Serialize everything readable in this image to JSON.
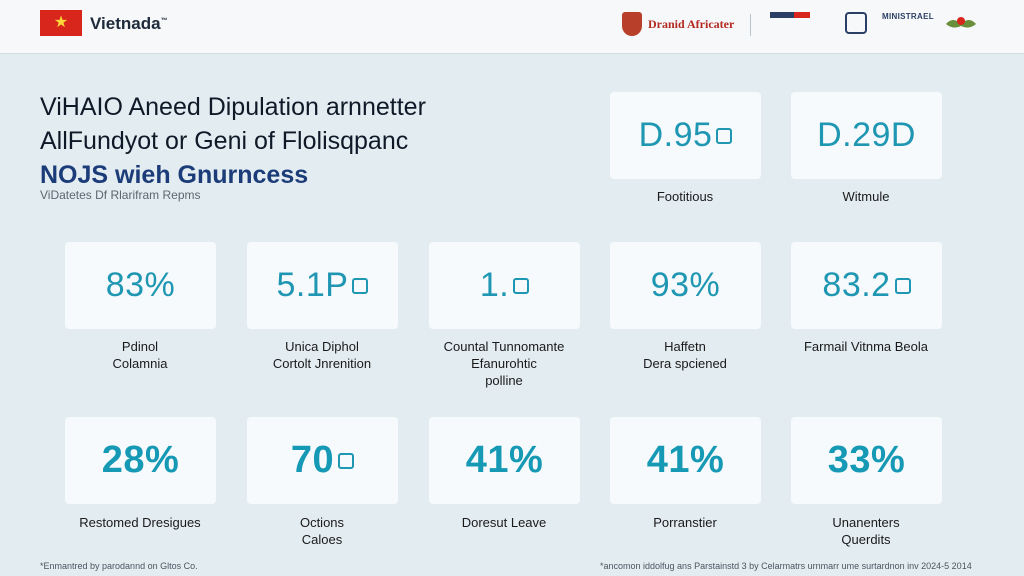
{
  "header": {
    "brand": "Vietnada",
    "brand_mark": "™",
    "partners": [
      "Dranid Africater",
      "MINISTRAEL"
    ]
  },
  "hero": {
    "title_line1": "ViHAIO Aneed Dipulation arnnetter",
    "title_line2": "AllFundyot or Geni of Flolisqpanc",
    "title_line3": "NOJS wieh Gnurncess",
    "subtitle": "ViDatetes Df Rlarifram Repms"
  },
  "top_stats": [
    {
      "value": "D.95",
      "caption": "Footitious"
    },
    {
      "value": "D.29D",
      "caption": "Witmule"
    }
  ],
  "mid_stats": [
    {
      "value": "83%",
      "caption": "Pdinol\nColamnia"
    },
    {
      "value": "5.1P",
      "caption": "Unica Diphol\nCortolt Jnrenition"
    },
    {
      "value": "1.",
      "caption": "Countal Tunnomante\nEfanurohtic\npolline"
    },
    {
      "value": "93%",
      "caption": "Haffetn\nDera spciened"
    },
    {
      "value": "83.2",
      "caption": "Farmail Vitnma Beola"
    }
  ],
  "bottom_stats": [
    {
      "value": "28%",
      "caption": "Restomed Dresigues"
    },
    {
      "value": "70",
      "caption": "Octions\nCaloes"
    },
    {
      "value": "41%",
      "caption": "Doresut Leave"
    },
    {
      "value": "41%",
      "caption": "Porranstier"
    },
    {
      "value": "33%",
      "caption": "Unanenters\nQuerdits"
    }
  ],
  "footer": {
    "left": "*Enmantred by parodannd on Gltos Co.",
    "right": "*ancomon iddolfug ans Parstainstd 3 by Celarmatrs urnmarr ume surtardnon inv 2024-5 2014"
  },
  "colors": {
    "accent": "#1f97b3",
    "title_blue": "#1b3c78",
    "flag_red": "#d8261c"
  }
}
